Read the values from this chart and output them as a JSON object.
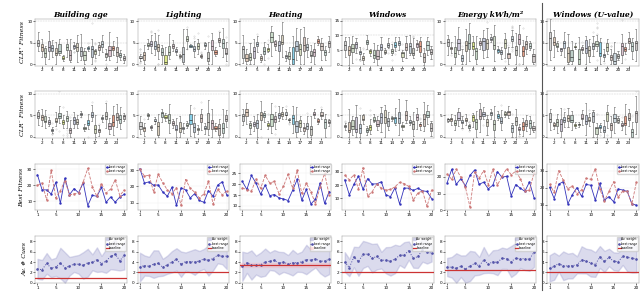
{
  "col_titles": [
    "Building age",
    "Lighting",
    "Heating",
    "Windows",
    "Energy kWh/m²",
    "Windows (U-value)"
  ],
  "row_labels": [
    "CLR⁺ Fitness",
    "CLR⁻ Fitness",
    "Best Fitness",
    "Av. # Cues"
  ],
  "n_cols": 6,
  "n_rows": 4,
  "fig_width": 6.4,
  "fig_height": 2.93,
  "background_color": "#ffffff",
  "shade_color_row4": "#9999cc",
  "shade_alpha_row4": 0.35,
  "line_color_row4_blue": "#5555aa",
  "red_line_color": "#cc3333",
  "grid_color": "#dddddd",
  "tick_labelsize": 3.0,
  "col_title_fontsize": 5.5,
  "row_label_fontsize": 4.5,
  "separator_color": "#555555",
  "separator_linewidth": 0.8,
  "n_boxplot_groups": 25,
  "n_generations": 20
}
